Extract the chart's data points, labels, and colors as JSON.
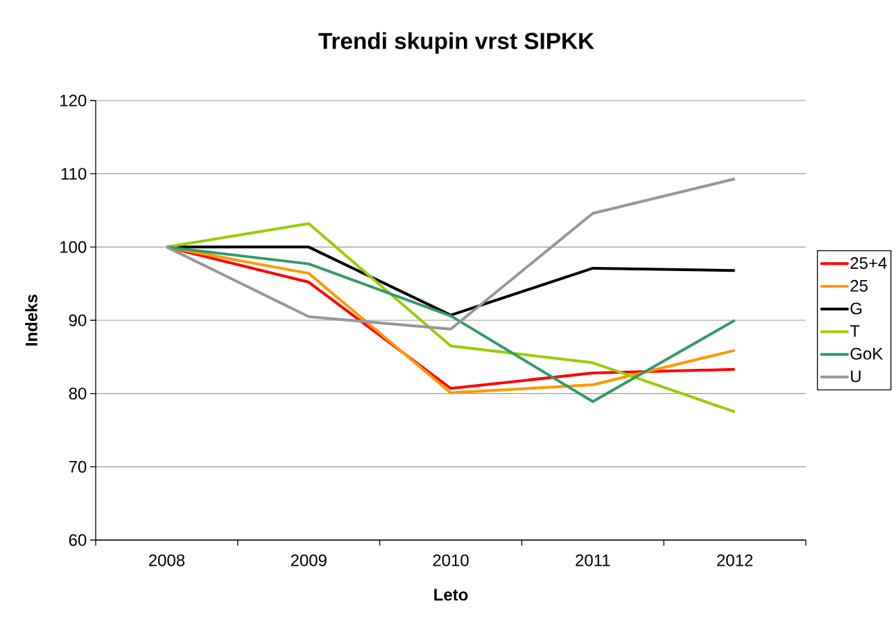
{
  "chart_data": {
    "type": "line",
    "title": "Trendi skupin vrst SIPKK",
    "xlabel": "Leto",
    "ylabel": "Indeks",
    "categories": [
      "2008",
      "2009",
      "2010",
      "2011",
      "2012"
    ],
    "ylim": [
      60,
      120
    ],
    "yticks": [
      60,
      70,
      80,
      90,
      100,
      110,
      120
    ],
    "grid": "y",
    "legend": "right",
    "marker": "none",
    "line_style": "solid",
    "series": [
      {
        "name": "25+4",
        "color": "#ff0000",
        "values": [
          100,
          95.2,
          80.7,
          82.8,
          83.3
        ]
      },
      {
        "name": "25",
        "color": "#ff9900",
        "values": [
          100,
          96.4,
          80.1,
          81.2,
          85.9
        ]
      },
      {
        "name": "G",
        "color": "#000000",
        "values": [
          100,
          100,
          90.7,
          97.1,
          96.8
        ]
      },
      {
        "name": "T",
        "color": "#99cc00",
        "values": [
          100,
          103.2,
          86.5,
          84.2,
          77.5
        ]
      },
      {
        "name": "GoK",
        "color": "#339966",
        "values": [
          100,
          97.7,
          90.6,
          78.9,
          90.0
        ]
      },
      {
        "name": "U",
        "color": "#969696",
        "values": [
          100,
          90.5,
          88.8,
          104.6,
          109.3
        ]
      }
    ]
  }
}
